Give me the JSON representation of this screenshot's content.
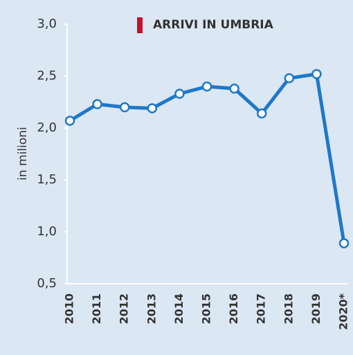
{
  "chart_data": {
    "type": "line",
    "y_label": "in milioni",
    "categories": [
      "2010",
      "2011",
      "2012",
      "2013",
      "2014",
      "2015",
      "2016",
      "2017",
      "2018",
      "2019",
      "2020*"
    ],
    "series": [
      {
        "name": "ARRIVI IN UMBRIA",
        "color": "#1f78c8",
        "legend_color": "#c8102e",
        "values": [
          2.07,
          2.23,
          2.2,
          2.19,
          2.33,
          2.4,
          2.38,
          2.14,
          2.48,
          2.52,
          0.89
        ]
      }
    ],
    "ylim": [
      0.5,
      3.0
    ],
    "yticks": [
      {
        "value": 0.5,
        "label": "0,5"
      },
      {
        "value": 1.0,
        "label": "1,0"
      },
      {
        "value": 1.5,
        "label": "1,5"
      },
      {
        "value": 2.0,
        "label": "2,0"
      },
      {
        "value": 2.5,
        "label": "2,5"
      },
      {
        "value": 3.0,
        "label": "3,0"
      }
    ],
    "grid": false
  }
}
